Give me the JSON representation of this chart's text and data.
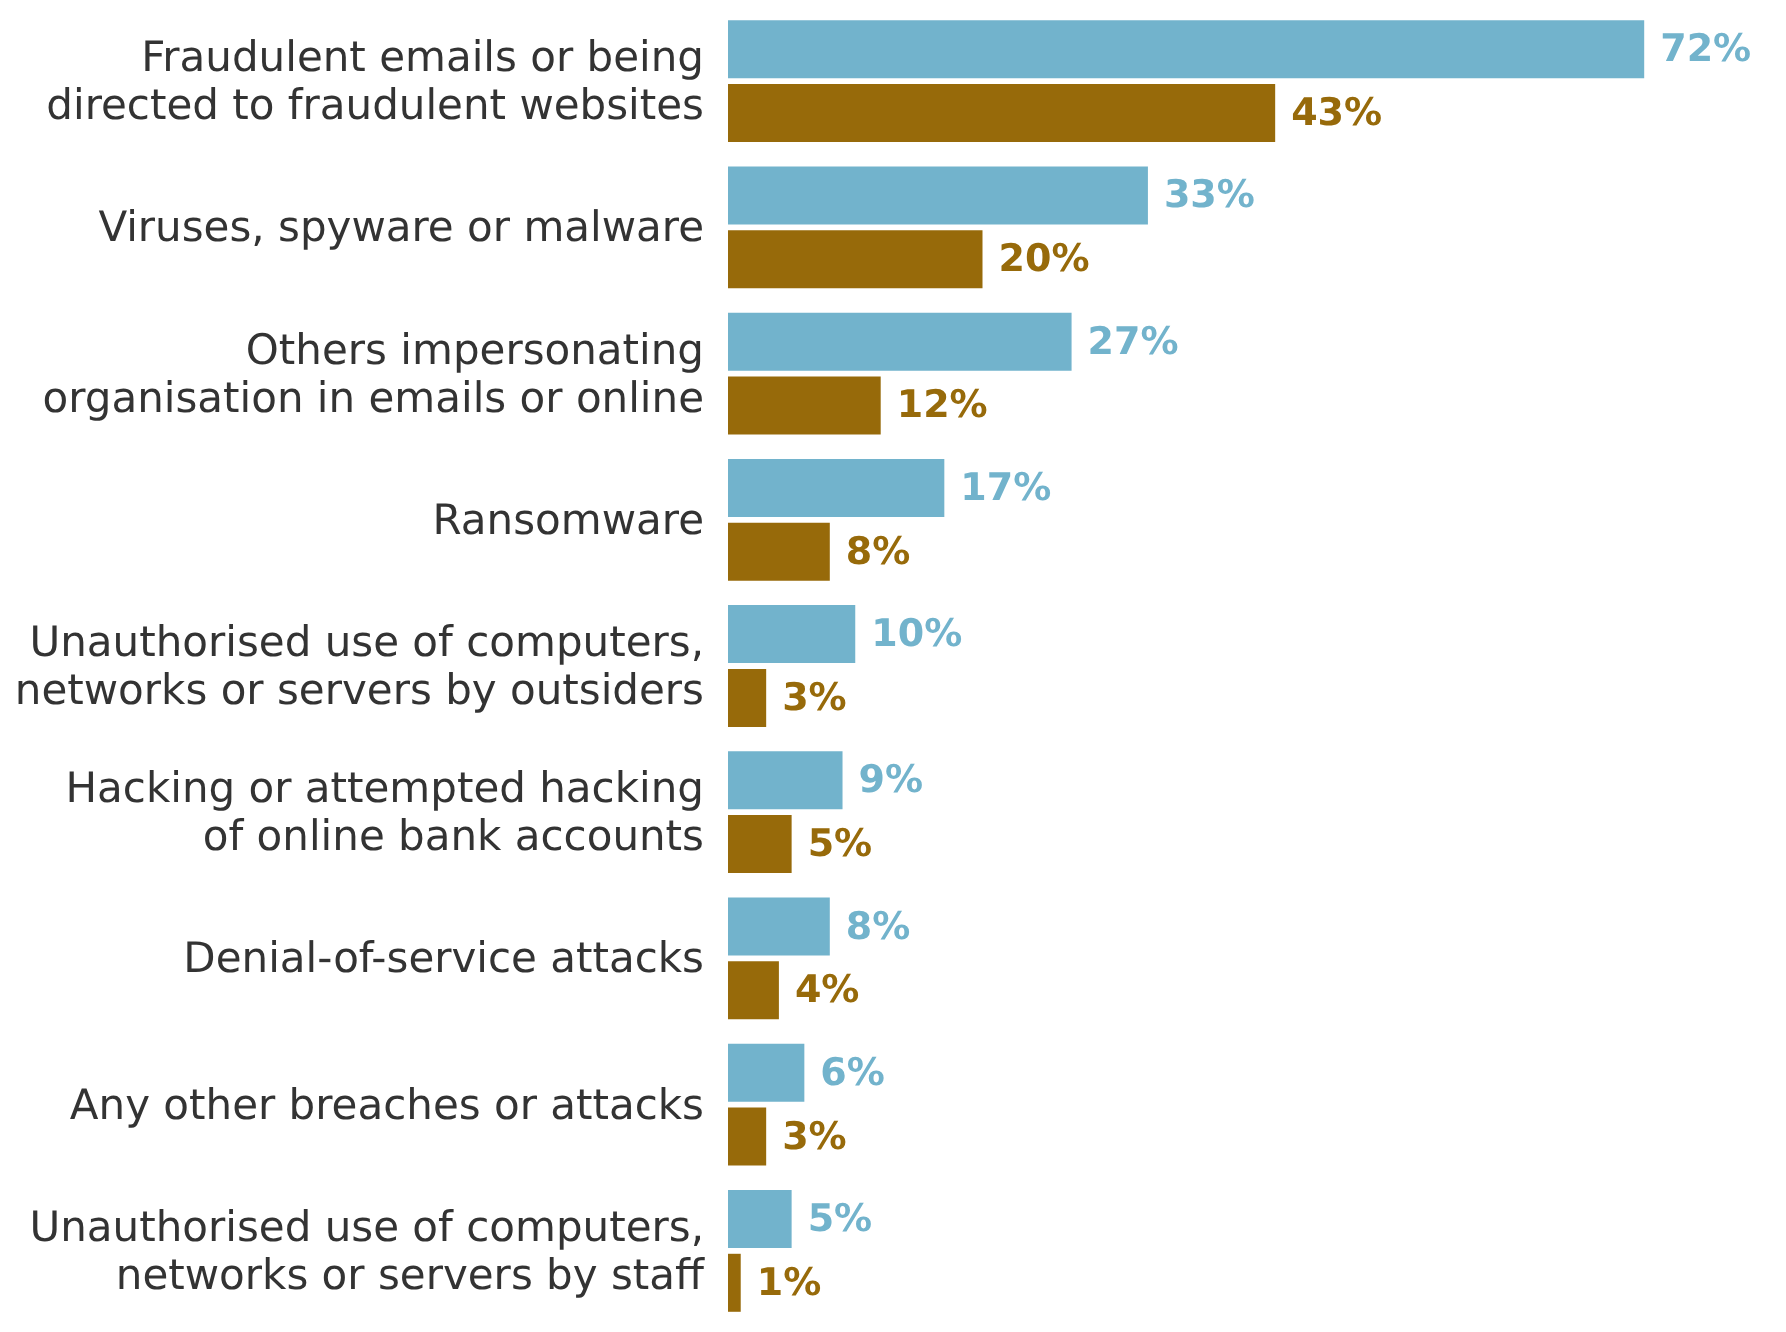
{
  "chart_data": {
    "type": "bar",
    "orientation": "horizontal",
    "tick_labels": "y",
    "categories": [
      "Fraudulent emails or being\ndirected to fraudulent websites",
      "Viruses, spyware or malware",
      "Others impersonating\norganisation in emails or online",
      "Ransomware",
      "Unauthorised use of computers,\nnetworks or servers by outsiders",
      "Hacking or attempted hacking\nof online bank accounts",
      "Denial-of-service attacks",
      "Any other breaches or attacks",
      "Unauthorised use of computers,\nnetworks or servers by staff"
    ],
    "series": [
      {
        "color": "#72b3cc",
        "values": [
          72,
          33,
          27,
          17,
          10,
          9,
          8,
          6,
          5
        ],
        "value_labels": [
          "72%",
          "33%",
          "27%",
          "17%",
          "10%",
          "9%",
          "8%",
          "6%",
          "5%"
        ]
      },
      {
        "color": "#976a0a",
        "values": [
          43,
          20,
          12,
          8,
          3,
          5,
          4,
          3,
          1
        ],
        "value_labels": [
          "43%",
          "20%",
          "12%",
          "8%",
          "3%",
          "5%",
          "4%",
          "3%",
          "1%"
        ]
      }
    ]
  }
}
